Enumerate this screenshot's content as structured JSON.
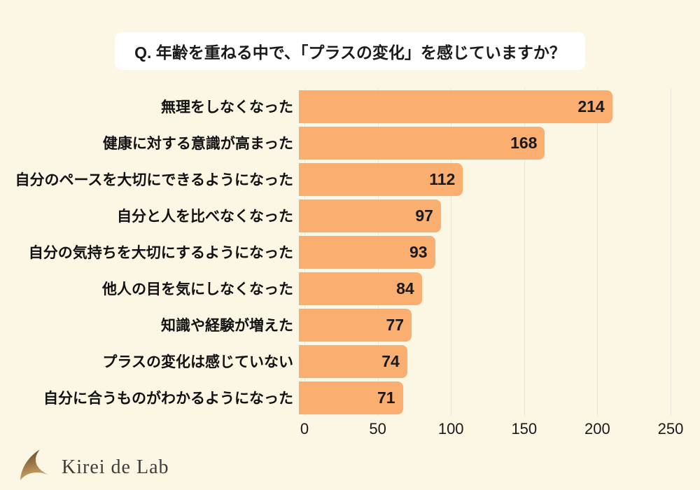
{
  "page": {
    "background": "#FCF6E5"
  },
  "title": {
    "text": "Q. 年齢を重ねる中で、「プラスの変化」を感じていますか？"
  },
  "chart_data": {
    "type": "bar",
    "orientation": "horizontal",
    "title": "Q. 年齢を重ねる中で、「プラスの変化」を感じていますか？",
    "categories": [
      "無理をしなくなった",
      "健康に対する意識が高まった",
      "自分のペースを大切にできるようになった",
      "自分と人を比べなくなった",
      "自分の気持ちを大切にするようになった",
      "他人の目を気にしなくなった",
      "知識や経験が増えた",
      "プラスの変化は感じていない",
      "自分に合うものがわかるようになった"
    ],
    "values": [
      214,
      168,
      112,
      97,
      93,
      84,
      77,
      74,
      71
    ],
    "xlabel": "",
    "ylabel": "",
    "xlim": [
      0,
      250
    ],
    "x_ticks": [
      0,
      50,
      100,
      150,
      200,
      250
    ],
    "grid": true,
    "legend": false,
    "bar_color": "#FAAE6F",
    "gridline_color": "#E7E4D9",
    "value_label_color": "#1A1A1A"
  },
  "footer": {
    "brand_text": "Kirei de Lab",
    "brand_icon": "crescent-swoosh-icon",
    "icon_gradient_top": "#5E3F24",
    "icon_gradient_bottom": "#D2A968"
  }
}
